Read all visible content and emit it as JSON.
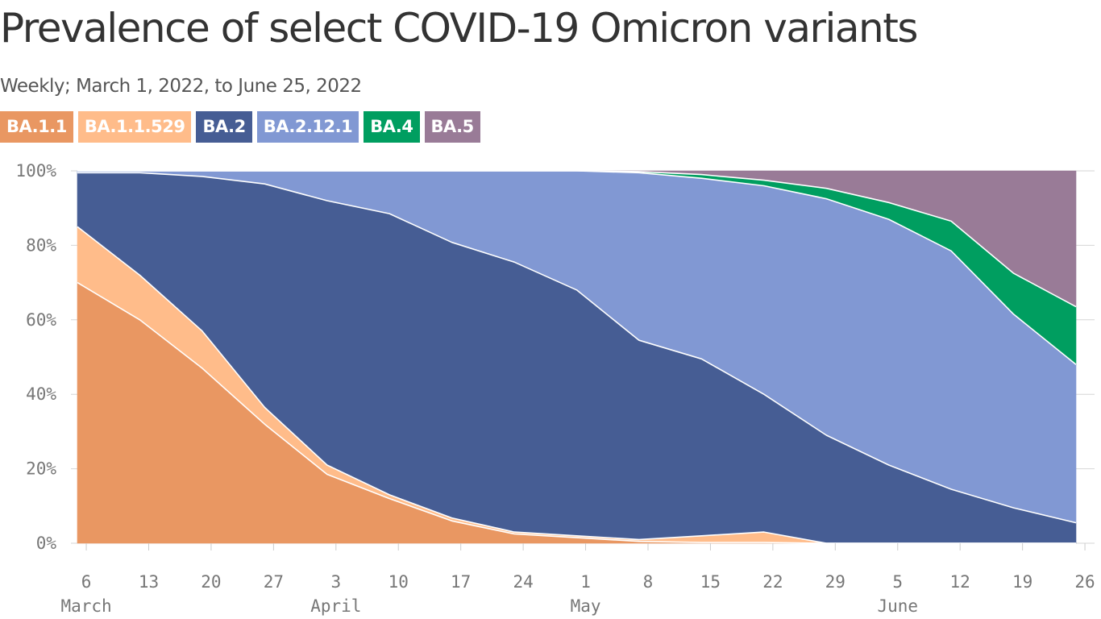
{
  "title": "Prevalence of select COVID-19 Omicron variants",
  "subtitle": "Weekly; March 1, 2022, to June 25, 2022",
  "chart_data": {
    "type": "area",
    "stacked": true,
    "title": "Prevalence of select COVID-19 Omicron variants",
    "subtitle": "Weekly; March 1, 2022, to June 25, 2022",
    "x": [
      "Mar 5",
      "Mar 12",
      "Mar 19",
      "Mar 26",
      "Apr 2",
      "Apr 9",
      "Apr 16",
      "Apr 23",
      "Apr 30",
      "May 7",
      "May 14",
      "May 21",
      "May 28",
      "Jun 4",
      "Jun 11",
      "Jun 18",
      "Jun 25"
    ],
    "series": [
      {
        "name": "BA.1.1",
        "color": "#E99762",
        "values": [
          70,
          60,
          47,
          32,
          18.5,
          12,
          6,
          2.5,
          1.5,
          0.5,
          0.2,
          0.2,
          0,
          0,
          0,
          0,
          0
        ]
      },
      {
        "name": "BA.1.1.529",
        "color": "#FFBC8A",
        "values": [
          15,
          12,
          10,
          4.5,
          2.5,
          1,
          0.8,
          0.5,
          0.5,
          0.5,
          1.8,
          2.8,
          0,
          0,
          0,
          0,
          0
        ]
      },
      {
        "name": "BA.2",
        "color": "#465D94",
        "values": [
          14.5,
          27.5,
          41.5,
          60,
          71,
          75.5,
          74,
          72.5,
          66,
          53.5,
          47.5,
          37,
          29,
          21,
          14.5,
          9.5,
          5.5
        ]
      },
      {
        "name": "BA.2.12.1",
        "color": "#8198D3",
        "values": [
          0.5,
          0.5,
          1.5,
          3.5,
          8,
          11.5,
          19.2,
          24.5,
          32,
          45,
          48.5,
          56,
          63.5,
          66,
          64,
          52,
          42.5
        ]
      },
      {
        "name": "BA.4",
        "color": "#009E60",
        "values": [
          0,
          0,
          0,
          0,
          0,
          0,
          0,
          0,
          0,
          0.3,
          1,
          1.5,
          2.8,
          4.5,
          8,
          11,
          15.5
        ]
      },
      {
        "name": "BA.5",
        "color": "#997B97",
        "values": [
          0,
          0,
          0,
          0,
          0,
          0,
          0,
          0,
          0,
          0.2,
          1,
          2.5,
          4.7,
          8.5,
          13.5,
          27.5,
          36.5
        ]
      }
    ],
    "ylim": [
      0,
      100
    ],
    "yticks": [
      0,
      20,
      40,
      60,
      80,
      100
    ],
    "ytick_labels": [
      "0%",
      "20%",
      "40%",
      "60%",
      "80%",
      "100%"
    ],
    "xticks": [
      {
        "date": "Mar 6",
        "label": "6"
      },
      {
        "date": "Mar 13",
        "label": "13"
      },
      {
        "date": "Mar 20",
        "label": "20"
      },
      {
        "date": "Mar 27",
        "label": "27"
      },
      {
        "date": "Apr 3",
        "label": "3"
      },
      {
        "date": "Apr 10",
        "label": "10"
      },
      {
        "date": "Apr 17",
        "label": "17"
      },
      {
        "date": "Apr 24",
        "label": "24"
      },
      {
        "date": "May 1",
        "label": "1"
      },
      {
        "date": "May 8",
        "label": "8"
      },
      {
        "date": "May 15",
        "label": "15"
      },
      {
        "date": "May 22",
        "label": "22"
      },
      {
        "date": "May 29",
        "label": "29"
      },
      {
        "date": "Jun 5",
        "label": "5"
      },
      {
        "date": "Jun 12",
        "label": "12"
      },
      {
        "date": "Jun 19",
        "label": "19"
      },
      {
        "date": "Jun 26",
        "label": "26"
      }
    ],
    "month_labels": [
      {
        "date": "Mar 6",
        "label": "March"
      },
      {
        "date": "Apr 3",
        "label": "April"
      },
      {
        "date": "May 1",
        "label": "May"
      },
      {
        "date": "Jun 5",
        "label": "June"
      }
    ],
    "grid": "horizontal",
    "legend": "top-left"
  }
}
